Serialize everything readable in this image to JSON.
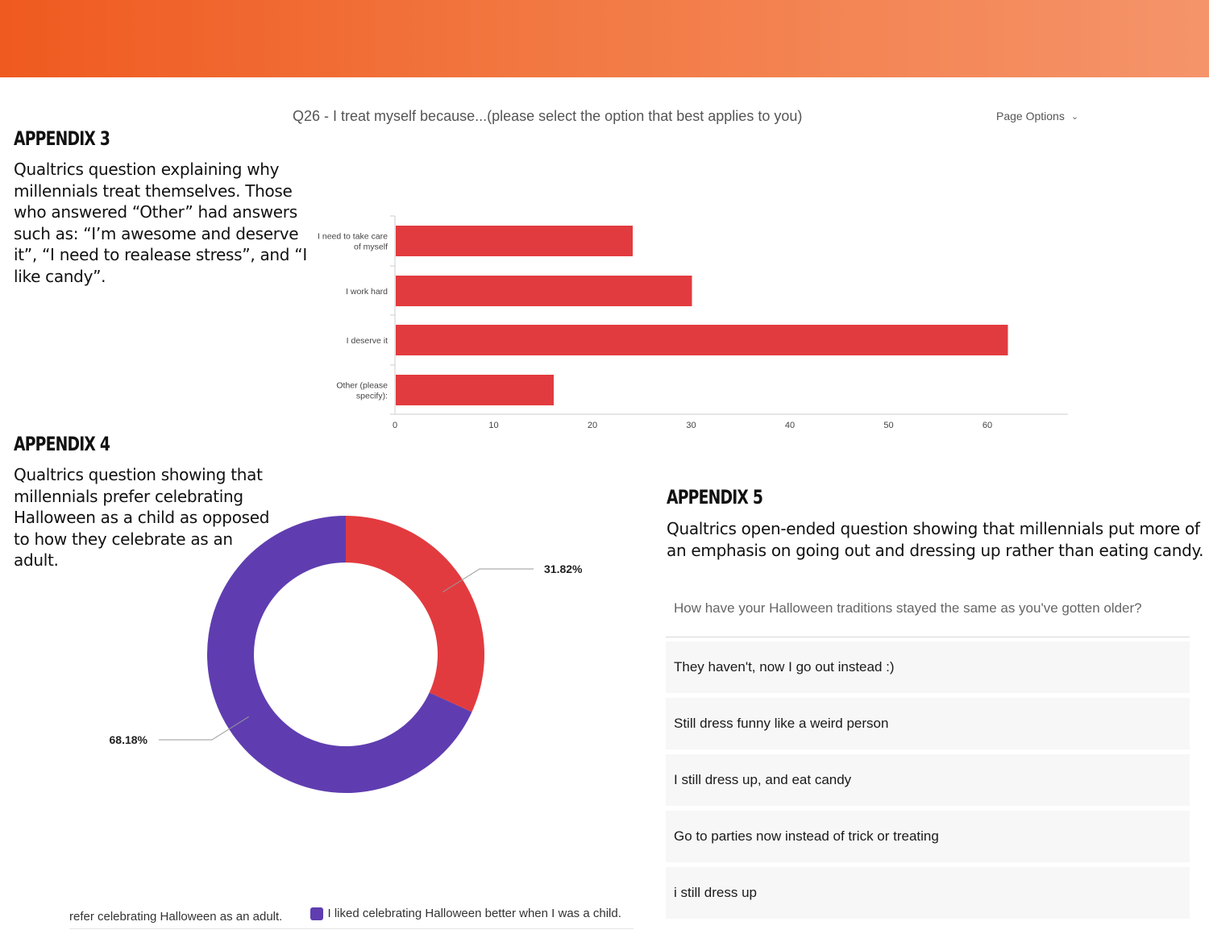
{
  "colors": {
    "banner_start": "#ef5a20",
    "banner_end": "#f5946a",
    "bar_red": "#e23b3f",
    "purple": "#5f3db0"
  },
  "appendix3": {
    "title": "APPENDIX 3",
    "lines": [
      "Qualtrics question explaining why",
      "millennials treat themselves. Those",
      "who answered “Other” had answers",
      "such as: “I’m awesome and deserve",
      "it”, “I need to realease stress”, and “I",
      "like candy”."
    ]
  },
  "appendix4": {
    "title": "APPENDIX 4",
    "lines": [
      "Qualtrics question showing that",
      "millennials prefer celebrating",
      "Halloween as a child as opposed",
      "to how they celebrate as an",
      "adult."
    ]
  },
  "appendix5": {
    "title": "APPENDIX 5",
    "lines": [
      "Qualtrics open-ended question showing that millennials put more of",
      "an emphasis on going out and dressing up rather than eating candy."
    ]
  },
  "q26": {
    "title": "Q26 - I treat myself because...(please select the option that best applies to you)",
    "page_options_label": "Page Options",
    "page_options_icon": "chevron-down-icon"
  },
  "chart_data": [
    {
      "type": "bar",
      "orientation": "horizontal",
      "categories": [
        [
          "I need to take care",
          "of myself"
        ],
        [
          "I work hard"
        ],
        [
          "I deserve it"
        ],
        [
          "Other (please",
          "specify):"
        ]
      ],
      "values": [
        24,
        30,
        62,
        16
      ],
      "xticks": [
        "0",
        "10",
        "20",
        "30",
        "40",
        "50",
        "60"
      ],
      "xlim": [
        0,
        68
      ],
      "grid": false
    },
    {
      "type": "pie",
      "variant": "donut",
      "slices": [
        {
          "label": "31.82%",
          "value": 31.82,
          "color": "#e23b3f"
        },
        {
          "label": "68.18%",
          "value": 68.18,
          "color": "#5f3db0"
        }
      ],
      "legend": [
        {
          "text": "I prefer celebrating Halloween as an adult.",
          "visible_text": "refer celebrating Halloween as an adult.",
          "color": "#e23b3f"
        },
        {
          "text": "I liked celebrating Halloween better when I was a child.",
          "visible_text": "I liked celebrating Halloween better when I was a child.",
          "color": "#5f3db0"
        }
      ]
    }
  ],
  "responses": {
    "header": "How have your Halloween traditions stayed the same as you've gotten older?",
    "rows": [
      "They haven't, now I go out instead :)",
      "Still dress funny like a weird person",
      "I still dress up, and eat candy",
      "Go to parties now instead of trick or treating",
      "i still dress up"
    ]
  }
}
